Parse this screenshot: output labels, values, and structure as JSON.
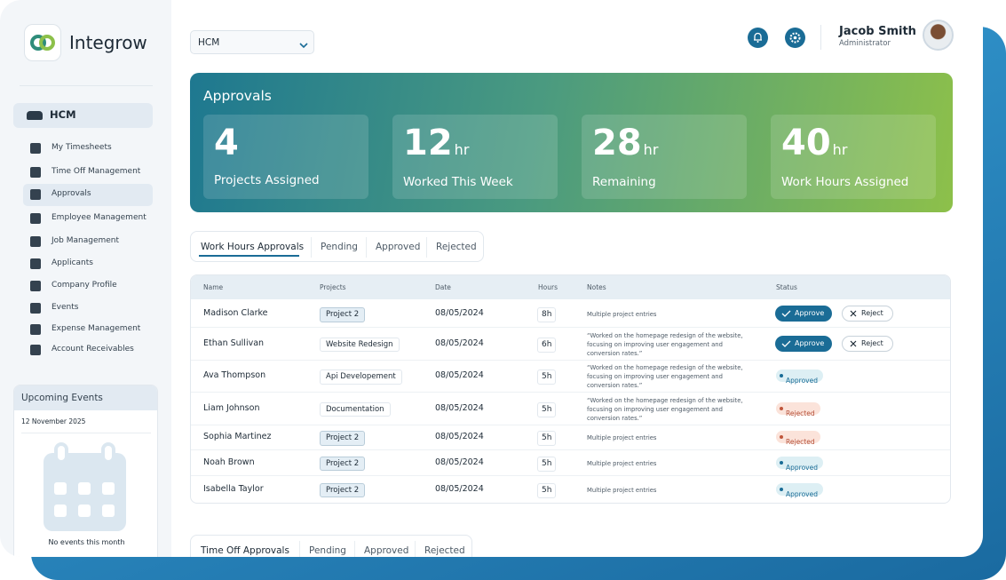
{
  "brand": "Integrow",
  "dropdown": "HCM",
  "user": {
    "name": "Jacob Smith",
    "role": "Administrator"
  },
  "sidebar": {
    "section": "HCM",
    "items": [
      "My Timesheets",
      "Time Off Management",
      "Approvals",
      "Employee Management",
      "Job Management",
      "Applicants",
      "Company Profile",
      "Events",
      "Expense Management",
      "Account Receivables"
    ]
  },
  "events": {
    "title": "Upcoming Events",
    "date": "12 November 2025",
    "empty": "No events this month"
  },
  "approvals": {
    "title": "Approvals",
    "stats": [
      {
        "value": "4",
        "label": "Projects Assigned"
      },
      {
        "value": "12",
        "unit": "hr",
        "label": "Worked This Week"
      },
      {
        "value": "28",
        "unit": "hr",
        "label": "Remaining"
      },
      {
        "value": "40",
        "unit": "hr",
        "label": "Work Hours Assigned"
      }
    ]
  },
  "tabs": [
    "Work Hours Approvals",
    "Pending",
    "Approved",
    "Rejected"
  ],
  "table": {
    "columns": [
      "Name",
      "Projects",
      "Date",
      "Hours",
      "Notes",
      "Status"
    ],
    "rows": [
      {
        "name": "Madison Clarke",
        "project": "Project 2",
        "date": "08/05/2024",
        "hours": "8h",
        "notes": "Multiple project entries",
        "actions": [
          "Approve",
          "Reject"
        ]
      },
      {
        "name": "Ethan Sullivan",
        "project": "Website Redesign",
        "date": "08/05/2024",
        "hours": "6h",
        "notes": "“Worked on the homepage redesign of the website, focusing on improving user engagement and conversion rates.”",
        "actions": [
          "Approve",
          "Reject"
        ]
      },
      {
        "name": "Ava Thompson",
        "project": "Api Developement",
        "date": "08/05/2024",
        "hours": "5h",
        "notes": "“Worked on the homepage redesign of the website, focusing on improving user engagement and conversion rates.”",
        "status": "Approved"
      },
      {
        "name": "Liam Johnson",
        "project": "Documentation",
        "date": "08/05/2024",
        "hours": "5h",
        "notes": "“Worked on the homepage redesign of the website, focusing on improving user engagement and conversion rates.”",
        "status": "Rejected"
      },
      {
        "name": "Sophia Martinez",
        "project": "Project 2",
        "date": "08/05/2024",
        "hours": "5h",
        "notes": "Multiple project entries",
        "status": "Rejected"
      },
      {
        "name": "Noah Brown",
        "project": "Project 2",
        "date": "08/05/2024",
        "hours": "5h",
        "notes": "Multiple project entries",
        "status": "Approved"
      },
      {
        "name": "Isabella Taylor",
        "project": "Project 2",
        "date": "08/05/2024",
        "hours": "5h",
        "notes": "Multiple project entries",
        "status": "Approved"
      }
    ]
  },
  "time_off_tabs": [
    "Time Off Approvals",
    "Pending",
    "Approved",
    "Rejected"
  ]
}
